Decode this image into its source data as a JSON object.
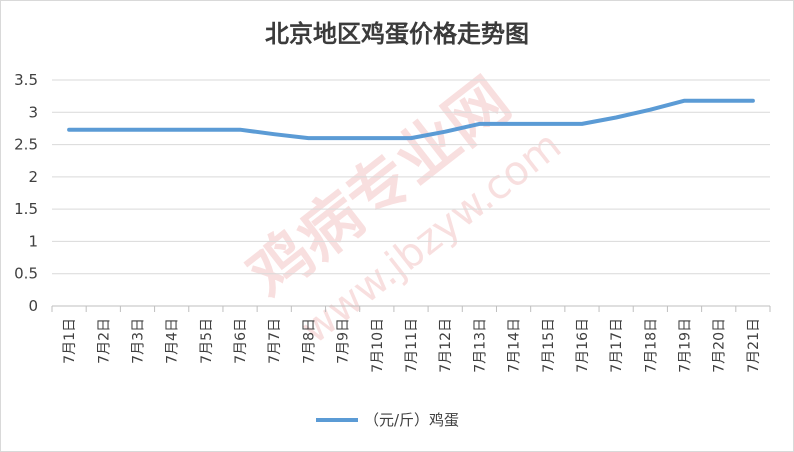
{
  "chart_data": {
    "type": "line",
    "title": "北京地区鸡蛋价格走势图",
    "categories": [
      "7月1日",
      "7月2日",
      "7月3日",
      "7月4日",
      "7月5日",
      "7月6日",
      "7月7日",
      "7月8日",
      "7月9日",
      "7月10日",
      "7月11日",
      "7月12日",
      "7月13日",
      "7月14日",
      "7月15日",
      "7月16日",
      "7月17日",
      "7月18日",
      "7月19日",
      "7月20日",
      "7月21日"
    ],
    "series": [
      {
        "name": "（元/斤）鸡蛋",
        "values": [
          2.73,
          2.73,
          2.73,
          2.73,
          2.73,
          2.73,
          2.66,
          2.6,
          2.6,
          2.6,
          2.6,
          2.7,
          2.82,
          2.82,
          2.82,
          2.82,
          2.92,
          3.04,
          3.18,
          3.18,
          3.18
        ],
        "color": "#5b9bd5"
      }
    ],
    "yticks": [
      "0",
      "0.5",
      "1",
      "1.5",
      "2",
      "2.5",
      "3",
      "3.5"
    ],
    "ylim": [
      0,
      3.5
    ],
    "grid": true,
    "legend_position": "bottom"
  },
  "watermark": {
    "brand": "鸡病专业网",
    "url": "www.jbzyw.com"
  }
}
